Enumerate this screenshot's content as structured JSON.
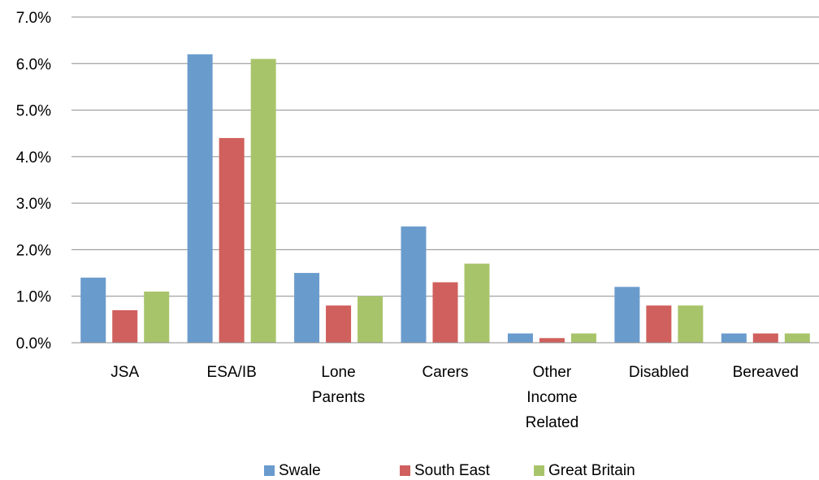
{
  "chart_data": {
    "type": "bar",
    "categories": [
      [
        "JSA"
      ],
      [
        "ESA/IB"
      ],
      [
        "Lone",
        "Parents"
      ],
      [
        "Carers"
      ],
      [
        "Other",
        "Income",
        "Related"
      ],
      [
        "Disabled"
      ],
      [
        "Bereaved"
      ]
    ],
    "series": [
      {
        "name": "Swale",
        "color": "#6a9bcd",
        "values": [
          1.4,
          6.2,
          1.5,
          2.5,
          0.2,
          1.2,
          0.2
        ]
      },
      {
        "name": "South East",
        "color": "#d0605d",
        "values": [
          0.7,
          4.4,
          0.8,
          1.3,
          0.1,
          0.8,
          0.2
        ]
      },
      {
        "name": "Great Britain",
        "color": "#a8c46a",
        "values": [
          1.1,
          6.1,
          1.0,
          1.7,
          0.2,
          0.8,
          0.2
        ]
      }
    ],
    "ylim": [
      0,
      7
    ],
    "yticks": [
      "0.0%",
      "1.0%",
      "2.0%",
      "3.0%",
      "4.0%",
      "5.0%",
      "6.0%",
      "7.0%"
    ],
    "grid": true,
    "legend_position": "bottom",
    "title": "",
    "xlabel": "",
    "ylabel": ""
  }
}
